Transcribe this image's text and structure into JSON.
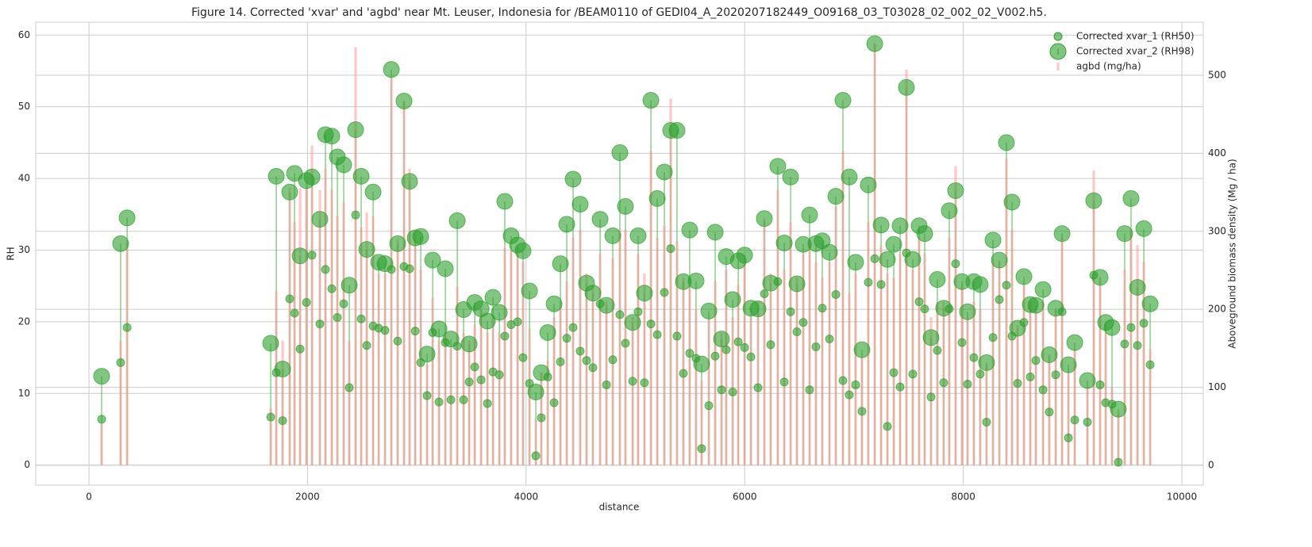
{
  "chart_data": {
    "type": "scatter",
    "title": "Figure 14. Corrected 'xvar' and 'agbd' near Mt. Leuser, Indonesia for /BEAM0110 of GEDI04_A_2020207182449_O09168_03_T03028_02_002_02_V002.h5.",
    "x_label": "distance",
    "y_label": "RH",
    "y2_label": "Aboveground biomass density (Mg / ha)",
    "x": [
      116,
      290,
      349,
      1663,
      1714,
      1772,
      1837,
      1881,
      1932,
      1990,
      2041,
      2113,
      2164,
      2222,
      2273,
      2331,
      2382,
      2440,
      2491,
      2542,
      2600,
      2651,
      2709,
      2767,
      2825,
      2883,
      2934,
      2985,
      3036,
      3094,
      3145,
      3203,
      3261,
      3312,
      3370,
      3428,
      3479,
      3530,
      3588,
      3646,
      3697,
      3755,
      3805,
      3863,
      3922,
      3972,
      4031,
      4089,
      4139,
      4198,
      4256,
      4314,
      4372,
      4430,
      4495,
      4553,
      4611,
      4677,
      4735,
      4793,
      4858,
      4909,
      4975,
      5025,
      5083,
      5142,
      5200,
      5265,
      5323,
      5381,
      5439,
      5497,
      5555,
      5606,
      5672,
      5730,
      5788,
      5831,
      5890,
      5941,
      5999,
      6057,
      6122,
      6180,
      6238,
      6303,
      6362,
      6420,
      6478,
      6536,
      6594,
      6652,
      6710,
      6776,
      6834,
      6899,
      6957,
      7015,
      7073,
      7131,
      7190,
      7248,
      7306,
      7364,
      7422,
      7480,
      7538,
      7596,
      7647,
      7705,
      7763,
      7821,
      7872,
      7930,
      7988,
      8039,
      8097,
      8155,
      8213,
      8272,
      8330,
      8395,
      8446,
      8497,
      8555,
      8613,
      8664,
      8730,
      8787,
      8846,
      8904,
      8962,
      9020,
      9136,
      9194,
      9252,
      9303,
      9361,
      9419,
      9477,
      9535,
      9594,
      9652,
      9710
    ],
    "series": [
      {
        "name": "Corrected xvar_1 (RH50)",
        "type": "scatter",
        "color": "#2ca02c",
        "values": [
          6.4,
          14.3,
          19.2,
          6.7,
          12.9,
          6.2,
          23.2,
          21.2,
          16.2,
          22.7,
          29.3,
          19.7,
          27.3,
          24.6,
          20.6,
          22.5,
          10.8,
          34.9,
          20.4,
          16.7,
          19.4,
          19.1,
          18.8,
          27.3,
          17.3,
          27.7,
          27.4,
          18.7,
          14.3,
          9.7,
          18.5,
          8.8,
          17.1,
          9.1,
          16.6,
          9.1,
          11.6,
          13.7,
          11.9,
          8.6,
          13.0,
          12.6,
          18.0,
          19.6,
          20.0,
          15.0,
          11.4,
          1.3,
          6.6,
          12.3,
          8.7,
          14.4,
          17.7,
          19.2,
          15.9,
          14.6,
          13.6,
          22.5,
          11.2,
          14.7,
          21.0,
          17.0,
          11.7,
          21.4,
          11.5,
          19.7,
          18.2,
          24.1,
          30.2,
          18.0,
          12.8,
          15.6,
          14.9,
          2.3,
          8.3,
          15.2,
          10.5,
          16.1,
          10.2,
          17.2,
          16.4,
          15.1,
          10.8,
          23.9,
          16.8,
          25.6,
          11.6,
          21.4,
          18.6,
          19.9,
          10.5,
          16.5,
          21.9,
          17.6,
          23.8,
          11.8,
          9.8,
          11.2,
          7.5,
          25.5,
          28.8,
          25.2,
          5.4,
          12.9,
          10.9,
          29.6,
          12.7,
          22.8,
          21.8,
          9.5,
          16.0,
          11.5,
          21.8,
          28.1,
          17.1,
          11.3,
          15.0,
          12.7,
          6.0,
          17.8,
          23.1,
          25.1,
          18.0,
          11.4,
          19.9,
          12.3,
          14.6,
          10.5,
          7.4,
          12.6,
          21.4,
          3.8,
          6.3,
          6.0,
          26.5,
          11.2,
          8.7,
          8.5,
          0.4,
          16.9,
          19.2,
          16.7,
          19.8,
          14.0
        ]
      },
      {
        "name": "Corrected xvar_2 (RH98)",
        "type": "stem",
        "color": "#2ca02c",
        "values": [
          12.4,
          30.9,
          34.5,
          17.0,
          40.3,
          13.4,
          38.1,
          40.7,
          29.2,
          39.7,
          40.2,
          34.3,
          46.1,
          45.9,
          43.0,
          41.9,
          25.1,
          46.8,
          40.3,
          30.1,
          38.1,
          28.3,
          28.1,
          55.2,
          30.9,
          50.8,
          39.6,
          31.7,
          31.9,
          15.5,
          28.6,
          19.0,
          27.4,
          17.6,
          34.1,
          21.7,
          16.9,
          22.7,
          21.8,
          20.1,
          23.4,
          21.3,
          36.8,
          32.0,
          30.7,
          29.9,
          24.3,
          10.2,
          12.9,
          18.5,
          22.5,
          28.1,
          33.6,
          39.9,
          36.4,
          25.4,
          24.0,
          34.3,
          22.3,
          32.0,
          43.6,
          36.1,
          19.9,
          32.0,
          24.0,
          50.9,
          37.2,
          40.9,
          46.7,
          46.7,
          25.6,
          32.8,
          25.7,
          14.1,
          21.5,
          32.5,
          17.6,
          29.1,
          23.1,
          28.5,
          29.3,
          21.9,
          21.8,
          34.4,
          25.4,
          41.7,
          31.0,
          40.2,
          25.3,
          30.8,
          34.9,
          30.9,
          31.3,
          29.7,
          37.5,
          50.9,
          40.2,
          28.3,
          16.1,
          39.1,
          58.8,
          33.5,
          28.7,
          30.8,
          33.4,
          52.7,
          28.7,
          33.4,
          32.3,
          17.8,
          25.9,
          21.9,
          35.5,
          38.3,
          25.6,
          21.4,
          25.6,
          25.2,
          14.3,
          31.4,
          28.6,
          45.0,
          36.7,
          19.1,
          26.3,
          22.4,
          22.3,
          24.5,
          15.4,
          21.9,
          32.3,
          14.0,
          17.1,
          11.8,
          36.9,
          26.2,
          19.9,
          19.2,
          7.8,
          32.3,
          37.2,
          24.8,
          33.0,
          22.5
        ]
      },
      {
        "name": "agbd (mg/ha)",
        "type": "bar",
        "axis": "y2",
        "color": "#ff9999",
        "values": [
          53,
          160,
          285,
          73,
          223,
          160,
          356,
          312,
          355,
          355,
          410,
          353,
          380,
          353,
          320,
          337,
          160,
          536,
          305,
          324,
          319,
          246,
          246,
          497,
          290,
          466,
          380,
          298,
          251,
          129,
          215,
          160,
          170,
          149,
          229,
          170,
          160,
          180,
          200,
          170,
          190,
          170,
          279,
          276,
          271,
          261,
          175,
          58,
          119,
          134,
          190,
          205,
          236,
          292,
          302,
          246,
          231,
          271,
          210,
          266,
          302,
          302,
          190,
          271,
          246,
          403,
          292,
          307,
          470,
          287,
          241,
          231,
          200,
          109,
          190,
          236,
          170,
          251,
          190,
          231,
          261,
          190,
          210,
          312,
          246,
          353,
          251,
          312,
          241,
          271,
          282,
          261,
          241,
          261,
          332,
          403,
          221,
          246,
          139,
          312,
          541,
          282,
          246,
          241,
          271,
          507,
          251,
          292,
          271,
          190,
          210,
          210,
          292,
          383,
          231,
          190,
          210,
          200,
          129,
          261,
          261,
          393,
          302,
          180,
          231,
          210,
          200,
          210,
          139,
          200,
          292,
          119,
          149,
          99,
          378,
          241,
          170,
          99,
          68,
          251,
          302,
          282,
          261,
          149
        ]
      }
    ],
    "xlim": [
      -487,
      10196
    ],
    "xticks": [
      0,
      2000,
      4000,
      6000,
      8000,
      10000
    ],
    "ylim": [
      -2.8,
      61.8
    ],
    "yticks": [
      0,
      10,
      20,
      30,
      40,
      50,
      60
    ],
    "y2lim": [
      -25.4,
      568
    ],
    "y2ticks": [
      0,
      100,
      200,
      300,
      400,
      500
    ],
    "grid": true,
    "legend": "upper right"
  }
}
